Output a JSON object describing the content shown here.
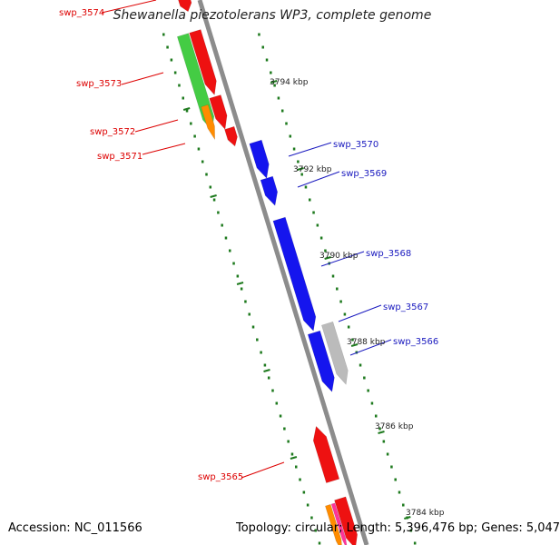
{
  "title": "Shewanella piezotolerans WP3, complete genome",
  "accession_text": "Accession: NC_011566",
  "topology_text": "Topology: circular; Length: 5,396,476 bp; Genes: 5,047",
  "colors": {
    "backbone": "#8c8c8c",
    "forward": "#ee1111",
    "reverse": "#1515ee",
    "green": "#44cc44",
    "orange": "#ff8c00",
    "grey": "#bbbbbb",
    "tick": "#1e7a1e",
    "forward_label": "#dd0000",
    "reverse_label": "#1a1abf"
  },
  "scale_labels": [
    {
      "text": "3794 kbp"
    },
    {
      "text": "3792 kbp"
    },
    {
      "text": "3790 kbp"
    },
    {
      "text": "3788 kbp"
    },
    {
      "text": "3786 kbp"
    },
    {
      "text": "3784 kbp"
    }
  ],
  "gene_labels": [
    {
      "text": "swp_3574",
      "strand": "forward"
    },
    {
      "text": "swp_3573",
      "strand": "forward"
    },
    {
      "text": "swp_3572",
      "strand": "forward"
    },
    {
      "text": "swp_3571",
      "strand": "forward"
    },
    {
      "text": "swp_3570",
      "strand": "reverse"
    },
    {
      "text": "swp_3569",
      "strand": "reverse"
    },
    {
      "text": "swp_3568",
      "strand": "reverse"
    },
    {
      "text": "swp_3567",
      "strand": "reverse"
    },
    {
      "text": "swp_3566",
      "strand": "reverse"
    },
    {
      "text": "swp_3565",
      "strand": "forward"
    }
  ]
}
